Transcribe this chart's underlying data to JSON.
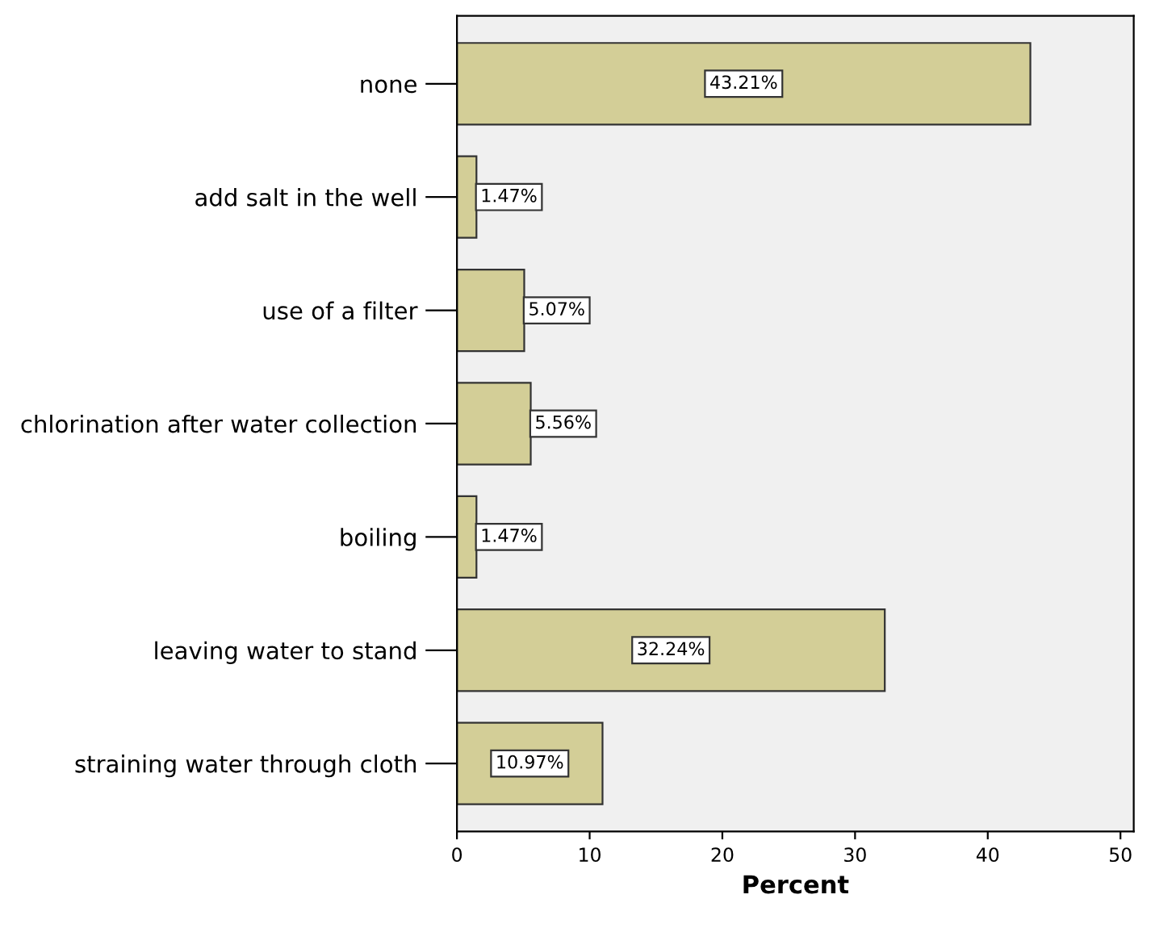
{
  "chart_data": {
    "type": "bar",
    "orientation": "horizontal",
    "xlabel": "Percent",
    "categories": [
      "none",
      "add salt in the well",
      "use of a filter",
      "chlorination after water collection",
      "boiling",
      "leaving water to stand",
      "straining water through cloth"
    ],
    "values": [
      43.21,
      1.47,
      5.07,
      5.56,
      1.47,
      32.24,
      10.97
    ],
    "value_labels": [
      "43.21%",
      "1.47%",
      "5.07%",
      "5.56%",
      "1.47%",
      "32.24%",
      "10.97%"
    ],
    "color": "#d3ce97",
    "xlim": [
      0,
      51
    ],
    "xticks": [
      0,
      10,
      20,
      30,
      40,
      50
    ],
    "grid": false
  }
}
